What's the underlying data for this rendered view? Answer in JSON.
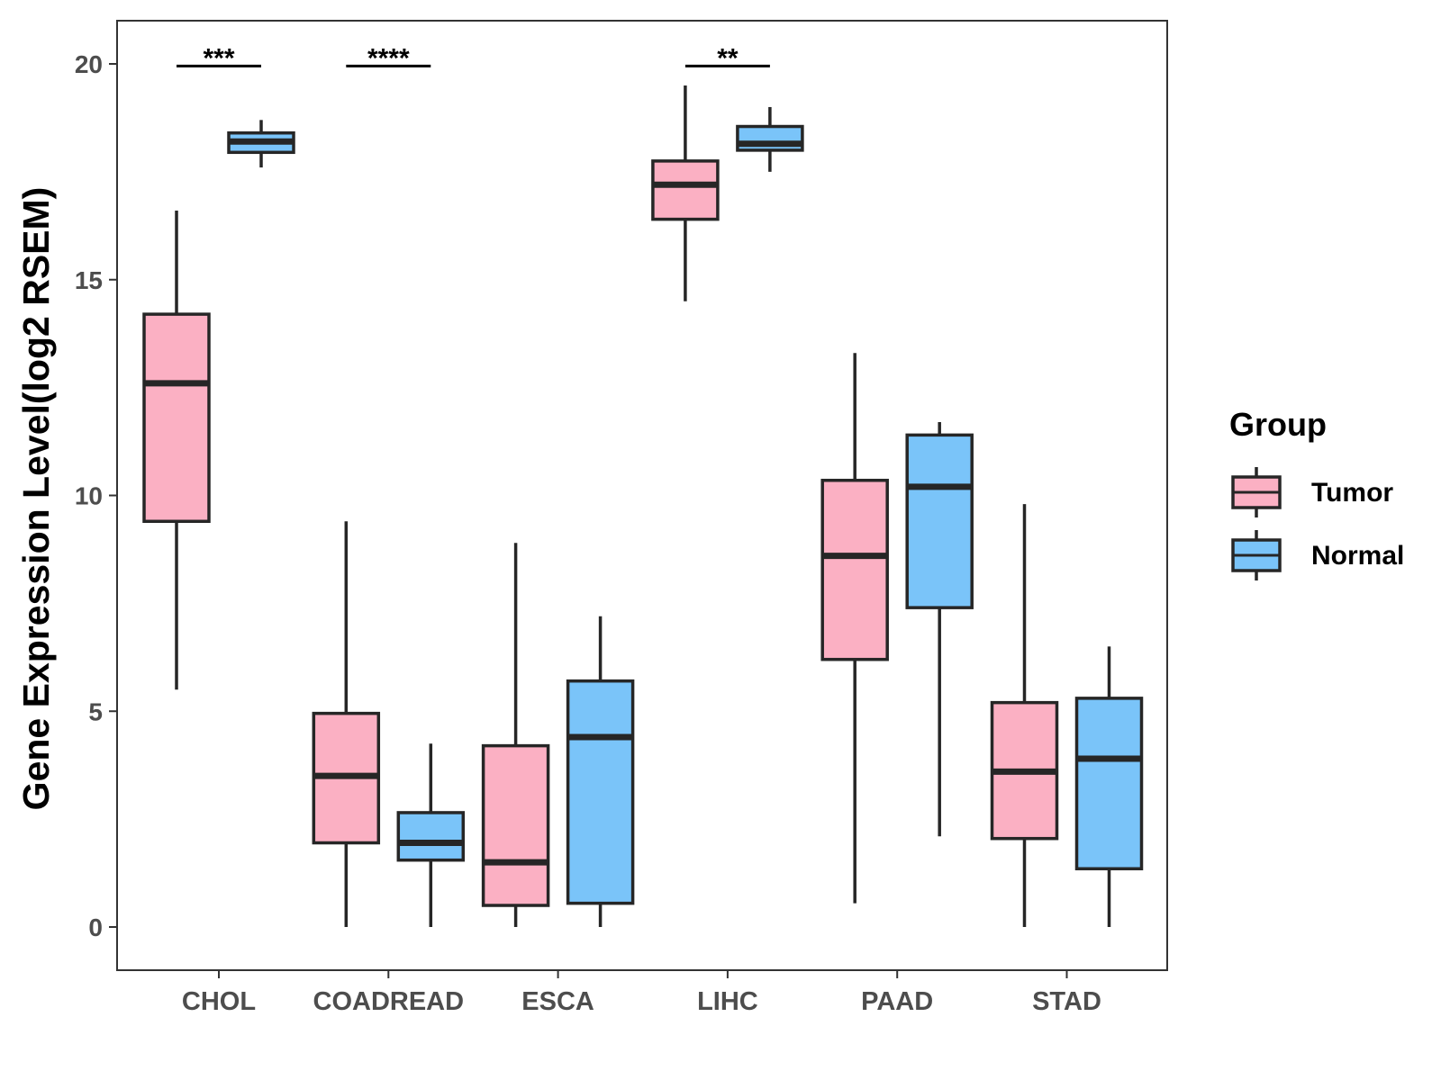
{
  "chart_data": {
    "type": "boxplot",
    "ylabel": "Gene Expression Level(log2 RSEM)",
    "xlabel": "",
    "ylim": [
      -1,
      21
    ],
    "yticks": [
      0,
      5,
      10,
      15,
      20
    ],
    "yticklabels": [
      "0",
      "5",
      "10",
      "15",
      "20"
    ],
    "categories": [
      "CHOL",
      "COADREAD",
      "ESCA",
      "LIHC",
      "PAAD",
      "STAD"
    ],
    "legend": {
      "title": "Group",
      "position": "right",
      "entries": [
        {
          "name": "Tumor",
          "color": "#FBB0C3"
        },
        {
          "name": "Normal",
          "color": "#7AC4F9"
        }
      ]
    },
    "series": [
      {
        "name": "Tumor",
        "color": "#FBB0C3",
        "boxes": [
          {
            "category": "CHOL",
            "min": 5.5,
            "q1": 9.4,
            "median": 12.6,
            "q3": 14.2,
            "max": 16.6
          },
          {
            "category": "COADREAD",
            "min": 0.0,
            "q1": 1.95,
            "median": 3.5,
            "q3": 4.95,
            "max": 9.4
          },
          {
            "category": "ESCA",
            "min": 0.0,
            "q1": 0.5,
            "median": 1.5,
            "q3": 4.2,
            "max": 8.9
          },
          {
            "category": "LIHC",
            "min": 14.5,
            "q1": 16.4,
            "median": 17.2,
            "q3": 17.75,
            "max": 19.5
          },
          {
            "category": "PAAD",
            "min": 0.55,
            "q1": 6.2,
            "median": 8.6,
            "q3": 10.35,
            "max": 13.3
          },
          {
            "category": "STAD",
            "min": 0.0,
            "q1": 2.05,
            "median": 3.6,
            "q3": 5.2,
            "max": 9.8
          }
        ]
      },
      {
        "name": "Normal",
        "color": "#7AC4F9",
        "boxes": [
          {
            "category": "CHOL",
            "min": 17.6,
            "q1": 17.95,
            "median": 18.2,
            "q3": 18.4,
            "max": 18.7
          },
          {
            "category": "COADREAD",
            "min": 0.0,
            "q1": 1.55,
            "median": 1.95,
            "q3": 2.65,
            "max": 4.25
          },
          {
            "category": "ESCA",
            "min": 0.0,
            "q1": 0.55,
            "median": 4.4,
            "q3": 5.7,
            "max": 7.2
          },
          {
            "category": "LIHC",
            "min": 17.5,
            "q1": 18.0,
            "median": 18.15,
            "q3": 18.55,
            "max": 19.0
          },
          {
            "category": "PAAD",
            "min": 2.1,
            "q1": 7.4,
            "median": 10.2,
            "q3": 11.4,
            "max": 11.7
          },
          {
            "category": "STAD",
            "min": 0.0,
            "q1": 1.35,
            "median": 3.9,
            "q3": 5.3,
            "max": 6.5
          }
        ]
      }
    ],
    "annotations": [
      {
        "category": "CHOL",
        "text": "***",
        "y": 19.95
      },
      {
        "category": "COADREAD",
        "text": "****",
        "y": 19.95
      },
      {
        "category": "LIHC",
        "text": "**",
        "y": 19.95
      }
    ]
  }
}
